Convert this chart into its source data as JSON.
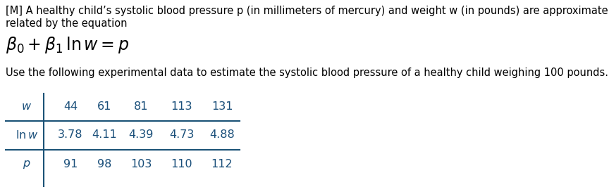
{
  "title_line1": "[M] A healthy child’s systolic blood pressure p (in millimeters of mercury) and weight w (in pounds) are approximately",
  "title_line2": "related by the equation",
  "equation": "$\\beta_0 + \\beta_1\\,\\mathrm{ln}\\,w = p$",
  "subtitle": "Use the following experimental data to estimate the systolic blood pressure of a healthy child weighing 100 pounds.",
  "col_values": [
    [
      "44",
      "61",
      "81",
      "113",
      "131"
    ],
    [
      "3.78",
      "4.11",
      "4.39",
      "4.73",
      "4.88"
    ],
    [
      "91",
      "98",
      "103",
      "110",
      "112"
    ]
  ],
  "bg_color": "#ffffff",
  "text_color": "#000000",
  "table_text_color": "#1a4f7a",
  "table_line_color": "#1a5276",
  "font_size_body": 10.5,
  "font_size_equation": 17,
  "font_size_table": 11.5
}
